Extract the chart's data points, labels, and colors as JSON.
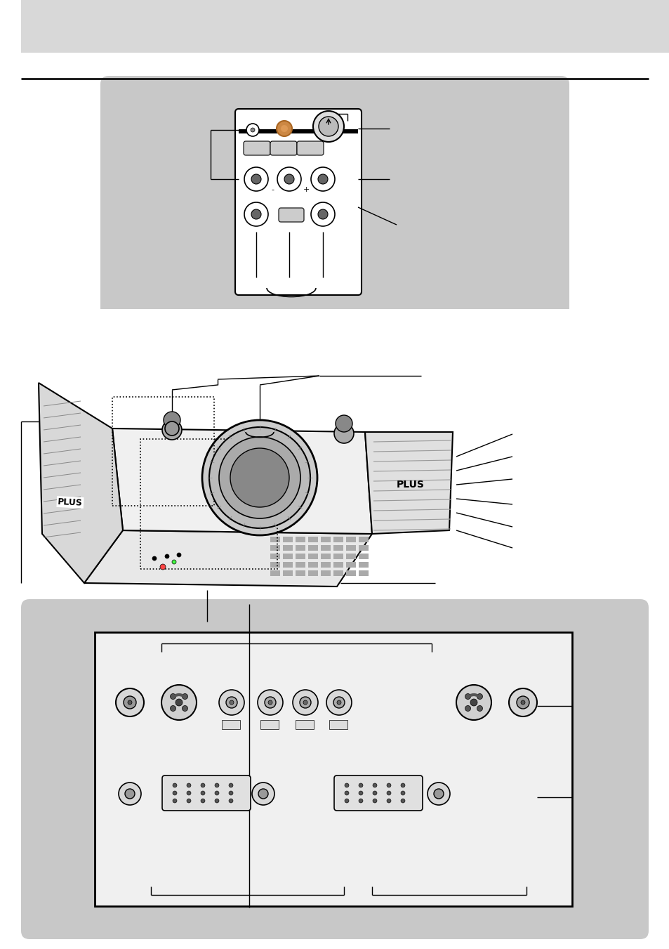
{
  "white_bg": "#ffffff",
  "header_gray": "#d8d8d8",
  "panel_gray": "#c8c8c8",
  "panel_bg_gray": "#cbcbcb",
  "dark_line": "#111111",
  "mid_gray": "#888888",
  "light_gray": "#e8e8e8",
  "connector_gray": "#aaaaaa",
  "body_light": "#f2f2f2",
  "body_mid": "#e0e0e0",
  "body_dark": "#c0c0c0",
  "vent_gray": "#999999"
}
